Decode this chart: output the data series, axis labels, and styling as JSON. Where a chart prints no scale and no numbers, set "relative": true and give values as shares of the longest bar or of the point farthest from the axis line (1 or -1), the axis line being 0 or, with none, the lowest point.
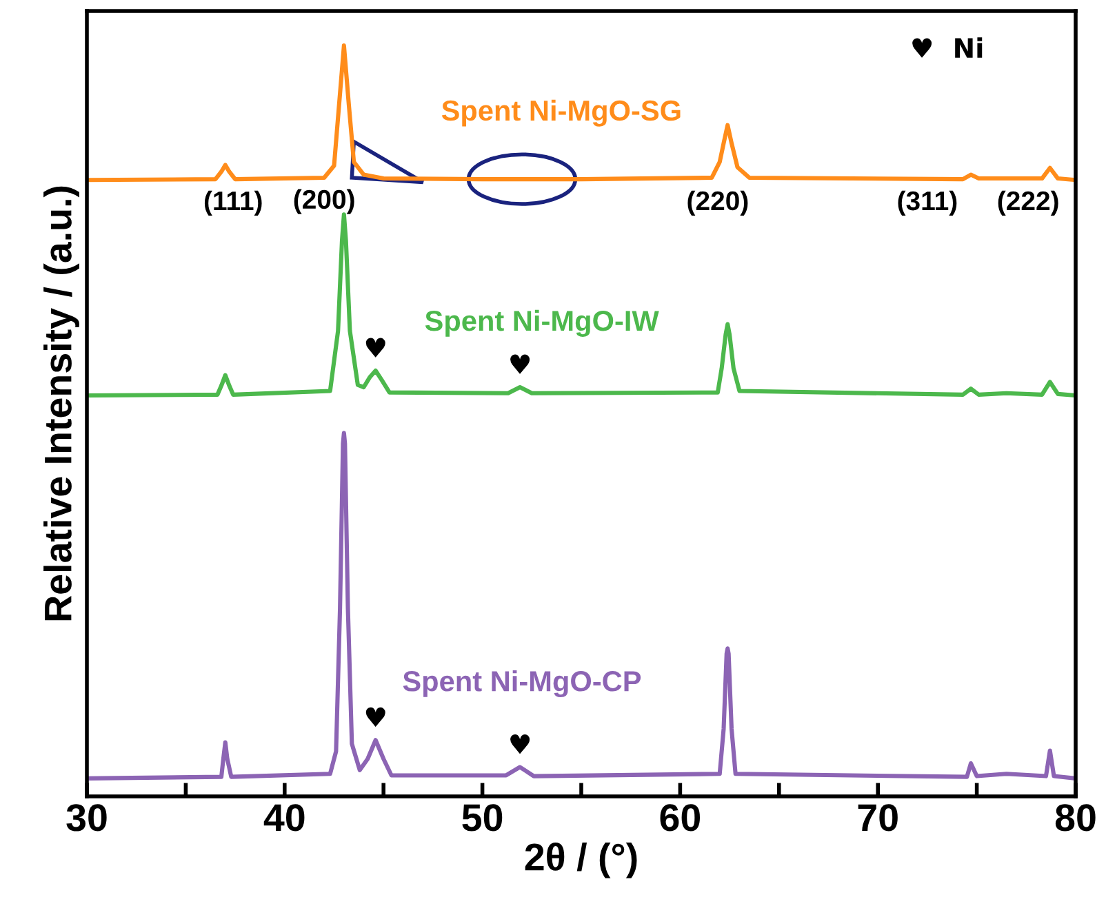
{
  "chart_data": {
    "type": "line",
    "relative": true,
    "xlabel": "2θ / (°)",
    "ylabel": "Relative Intensity / (a.u.)",
    "xlim": [
      30,
      80
    ],
    "xticks": [
      30,
      {
        "value": 35,
        "label": null
      },
      40,
      {
        "value": 45,
        "label": null
      },
      50,
      {
        "value": 55,
        "label": null
      },
      60,
      {
        "value": 65,
        "label": null
      },
      70,
      {
        "value": 75,
        "label": null
      },
      80
    ],
    "tick_labels": "x",
    "grid": false,
    "legend": false,
    "marker": "none",
    "line_style": "solid",
    "series": [
      {
        "name": "Spent Ni-MgO-SG",
        "color": "#ff8c1a",
        "x": [
          30,
          36.5,
          36.8,
          37.0,
          37.2,
          37.5,
          42.0,
          42.5,
          42.75,
          43.0,
          43.25,
          43.5,
          44.0,
          45,
          50,
          55,
          61.6,
          62.0,
          62.2,
          62.4,
          62.6,
          62.9,
          63.5,
          74.3,
          74.7,
          75.1,
          78.3,
          78.7,
          79.1,
          80
        ],
        "values": [
          0.821,
          0.822,
          0.832,
          0.841,
          0.832,
          0.822,
          0.824,
          0.84,
          0.92,
          1.0,
          0.92,
          0.845,
          0.828,
          0.823,
          0.822,
          0.822,
          0.824,
          0.845,
          0.87,
          0.894,
          0.87,
          0.838,
          0.824,
          0.822,
          0.828,
          0.823,
          0.823,
          0.837,
          0.823,
          0.821
        ]
      },
      {
        "name": "Spent Ni-MgO-IW",
        "color": "#4cb84c",
        "x": [
          30,
          36.6,
          36.8,
          37.0,
          37.2,
          37.4,
          42.3,
          42.7,
          42.9,
          43.0,
          43.1,
          43.3,
          43.7,
          44.0,
          44.3,
          44.6,
          44.9,
          45.3,
          51.3,
          51.9,
          52.5,
          61.9,
          62.1,
          62.3,
          62.4,
          62.5,
          62.7,
          63.0,
          74.3,
          74.7,
          75.1,
          76.5,
          78.3,
          78.7,
          79.1,
          80
        ],
        "values": [
          0.534,
          0.535,
          0.547,
          0.561,
          0.547,
          0.535,
          0.54,
          0.62,
          0.74,
          0.775,
          0.74,
          0.62,
          0.548,
          0.545,
          0.558,
          0.567,
          0.555,
          0.538,
          0.537,
          0.545,
          0.537,
          0.538,
          0.57,
          0.615,
          0.629,
          0.615,
          0.57,
          0.54,
          0.535,
          0.543,
          0.535,
          0.537,
          0.535,
          0.552,
          0.536,
          0.534
        ]
      },
      {
        "name": "Spent Ni-MgO-CP",
        "color": "#8c64b4",
        "x": [
          30,
          36.8,
          36.9,
          37.0,
          37.1,
          37.3,
          42.3,
          42.6,
          42.8,
          42.95,
          43.0,
          43.05,
          43.2,
          43.4,
          43.8,
          44.2,
          44.6,
          45.0,
          45.4,
          51.2,
          51.9,
          52.6,
          62.0,
          62.2,
          62.35,
          62.4,
          62.45,
          62.6,
          62.8,
          74.5,
          74.7,
          75.0,
          76.5,
          78.5,
          78.7,
          78.9,
          80
        ],
        "values": [
          0.024,
          0.026,
          0.05,
          0.072,
          0.05,
          0.026,
          0.03,
          0.06,
          0.25,
          0.47,
          0.484,
          0.47,
          0.25,
          0.07,
          0.035,
          0.05,
          0.075,
          0.05,
          0.028,
          0.028,
          0.039,
          0.027,
          0.03,
          0.09,
          0.19,
          0.197,
          0.19,
          0.09,
          0.03,
          0.026,
          0.044,
          0.027,
          0.03,
          0.027,
          0.061,
          0.027,
          0.024
        ]
      }
    ],
    "annotations": [
      {
        "text": "(111)",
        "x": 37.4,
        "y": 0.822
      },
      {
        "text": "(200)",
        "x": 42.0,
        "y": 0.824
      },
      {
        "text": "(220)",
        "x": 61.9,
        "y": 0.822
      },
      {
        "text": "(311)",
        "x": 72.5,
        "y": 0.822
      },
      {
        "text": "(222)",
        "x": 77.6,
        "y": 0.822
      },
      {
        "text": "♥",
        "x": 44.6,
        "y": 0.567
      },
      {
        "text": "♥",
        "x": 51.9,
        "y": 0.545
      },
      {
        "text": "♥",
        "x": 44.6,
        "y": 0.075
      },
      {
        "text": "♥",
        "x": 51.9,
        "y": 0.039
      },
      "♥  Ni"
    ]
  }
}
